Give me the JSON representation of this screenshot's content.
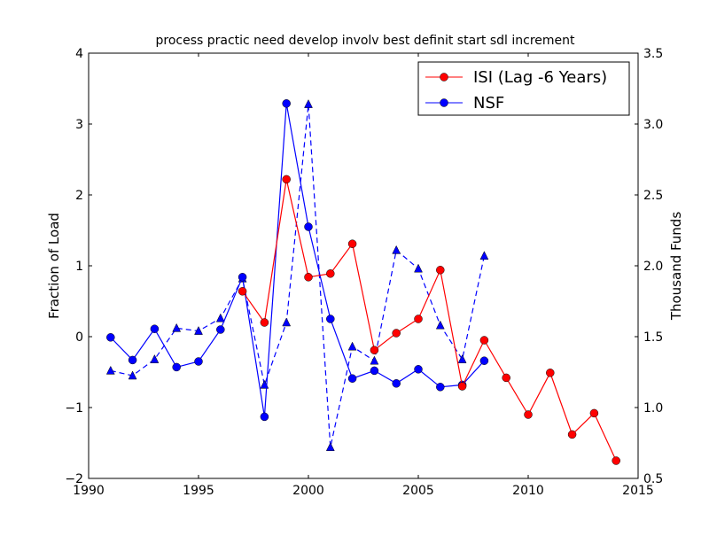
{
  "chart_data": {
    "type": "line",
    "title": "process practic need develop involv best definit start sdl increment",
    "xlabel": "",
    "ylabel": "Fraction of Load",
    "ylabel_right": "Thousand Funds",
    "xlim": [
      1990,
      2015
    ],
    "ylim": [
      -2,
      4
    ],
    "ylim_right": [
      0.5,
      3.5
    ],
    "xticks": [
      "1990",
      "1995",
      "2000",
      "2005",
      "2010",
      "2015"
    ],
    "yticks": [
      "−2",
      "−1",
      "0",
      "1",
      "2",
      "3",
      "4"
    ],
    "yticks_right": [
      "0.5",
      "1.0",
      "1.5",
      "2.0",
      "2.5",
      "3.0",
      "3.5"
    ],
    "grid": false,
    "legend_position": "top-right",
    "series": [
      {
        "name": "ISI (Lag -6 Years)",
        "axis": "left",
        "color": "#ff0000",
        "marker": "circle",
        "style": "solid",
        "x": [
          1997,
          1998,
          1999,
          2000,
          2001,
          2002,
          2003,
          2004,
          2005,
          2006,
          2007,
          2008,
          2009,
          2010,
          2011,
          2012,
          2013,
          2014
        ],
        "values": [
          0.64,
          0.2,
          2.22,
          0.84,
          0.89,
          1.31,
          -0.19,
          0.05,
          0.25,
          0.94,
          -0.7,
          -0.05,
          -0.58,
          -1.1,
          -0.51,
          -1.38,
          -1.08,
          -1.75
        ]
      },
      {
        "name": "NSF",
        "axis": "left",
        "color": "#0000ff",
        "marker": "circle",
        "style": "solid",
        "x": [
          1991,
          1992,
          1993,
          1994,
          1995,
          1996,
          1997,
          1998,
          1999,
          2000,
          2001,
          2002,
          2003,
          2004,
          2005,
          2006,
          2007,
          2008
        ],
        "values": [
          -0.01,
          -0.33,
          0.11,
          -0.43,
          -0.35,
          0.1,
          0.84,
          -1.13,
          3.29,
          1.55,
          0.25,
          -0.59,
          -0.48,
          -0.66,
          -0.46,
          -0.71,
          -0.68,
          -0.34
        ]
      },
      {
        "name": "",
        "axis": "right",
        "color": "#0000ff",
        "marker": "triangle",
        "style": "dashed",
        "x": [
          1991,
          1992,
          1993,
          1994,
          1995,
          1996,
          1997,
          1998,
          1999,
          2000,
          2001,
          2002,
          2003,
          2004,
          2005,
          2006,
          2007,
          2008
        ],
        "values": [
          1.26,
          1.225,
          1.34,
          1.56,
          1.54,
          1.63,
          1.91,
          1.16,
          1.6,
          3.14,
          0.72,
          1.43,
          1.33,
          2.11,
          1.98,
          1.58,
          1.34,
          2.07
        ]
      }
    ]
  }
}
